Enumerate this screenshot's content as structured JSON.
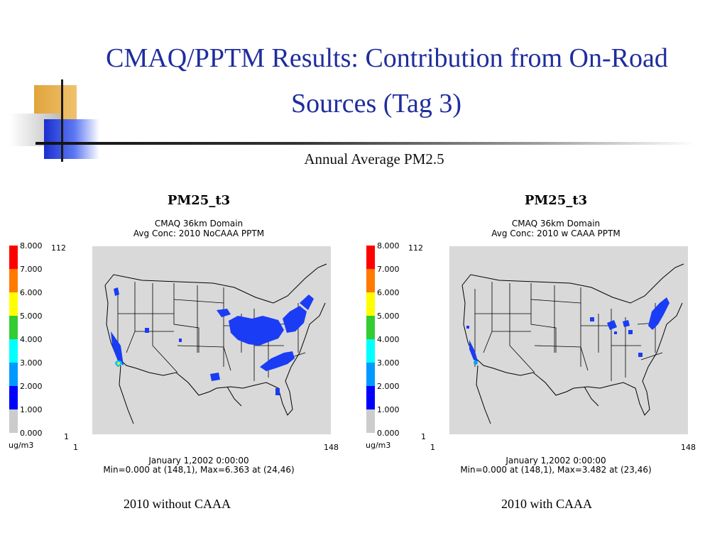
{
  "slide": {
    "title_line1": "CMAQ/PPTM Results: Contribution from On-Road",
    "title_line2": "Sources (Tag 3)",
    "subtitle": "Annual Average PM2.5",
    "accent_color": "#1f2d9e"
  },
  "legend": {
    "ticks": [
      "8.000",
      "7.000",
      "6.000",
      "5.000",
      "4.000",
      "3.000",
      "2.000",
      "1.000",
      "0.000"
    ],
    "colors": [
      "#ff0000",
      "#ff7a00",
      "#ffff00",
      "#33cc33",
      "#00ffff",
      "#0099ff",
      "#0000ff",
      "#cccccc"
    ],
    "unit": "ug/m3"
  },
  "panels": [
    {
      "title": "PM25_t3",
      "line1": "CMAQ 36km Domain",
      "line2": "Avg Conc: 2010 NoCAAA PPTM",
      "y_top": "112",
      "y_bottom": "1",
      "x_left": "1",
      "x_right": "148",
      "date": "January 1,2002 0:00:00",
      "minmax": "Min=0.000 at (148,1), Max=6.363 at (24,46)",
      "caption": "2010 without CAAA"
    },
    {
      "title": "PM25_t3",
      "line1": "CMAQ 36km Domain",
      "line2": "Avg Conc: 2010 w CAAA PPTM",
      "y_top": "112",
      "y_bottom": "1",
      "x_left": "1",
      "x_right": "148",
      "date": "January 1,2002 0:00:00",
      "minmax": "Min=0.000 at (148,1), Max=3.482 at (23,46)",
      "caption": "2010 with CAAA"
    }
  ]
}
